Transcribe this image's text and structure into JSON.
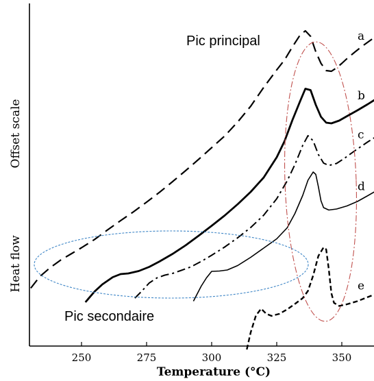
{
  "chart_data": {
    "type": "line",
    "title": "",
    "xlabel": "Temperature (°C)",
    "ylabel": "Heat flow",
    "ylabel_secondary": "Offset scale",
    "xlim": [
      230,
      365
    ],
    "ylim": [
      0,
      100
    ],
    "xticks": [
      250,
      275,
      300,
      325,
      350
    ],
    "grid": false,
    "annotations": {
      "main_peak": "Pic principal",
      "secondary_peak": "Pic secondaire"
    },
    "series": [
      {
        "name": "a",
        "dash": "long-dash",
        "points": [
          [
            230.5,
            16.9
          ],
          [
            234,
            20.3
          ],
          [
            238,
            22.9
          ],
          [
            242,
            25.1
          ],
          [
            246,
            26.9
          ],
          [
            250,
            28.7
          ],
          [
            255,
            31.1
          ],
          [
            260,
            33.9
          ],
          [
            265,
            36.6
          ],
          [
            270,
            39.2
          ],
          [
            275,
            42.0
          ],
          [
            280,
            44.9
          ],
          [
            285,
            48.0
          ],
          [
            290,
            51.2
          ],
          [
            295,
            54.5
          ],
          [
            300,
            57.9
          ],
          [
            305,
            61.3
          ],
          [
            310,
            65.4
          ],
          [
            315,
            70.0
          ],
          [
            320,
            75.5
          ],
          [
            325,
            80.6
          ],
          [
            328,
            83.5
          ],
          [
            331,
            87.3
          ],
          [
            334,
            90.8
          ],
          [
            336,
            92.0
          ],
          [
            338,
            90.4
          ],
          [
            340,
            85.9
          ],
          [
            342,
            82.5
          ],
          [
            344,
            80.4
          ],
          [
            346,
            80.2
          ],
          [
            348,
            81.2
          ],
          [
            350,
            82.5
          ],
          [
            352,
            83.9
          ],
          [
            355,
            85.8
          ],
          [
            358,
            87.6
          ],
          [
            362,
            89.8
          ],
          [
            365,
            91.2
          ]
        ]
      },
      {
        "name": "b",
        "dash": "solid-thick",
        "points": [
          [
            251.5,
            12.8
          ],
          [
            255,
            15.9
          ],
          [
            258,
            18.0
          ],
          [
            262,
            20.1
          ],
          [
            265,
            21.0
          ],
          [
            268,
            21.2
          ],
          [
            272,
            21.9
          ],
          [
            276,
            23.1
          ],
          [
            280,
            24.7
          ],
          [
            285,
            26.9
          ],
          [
            290,
            29.4
          ],
          [
            295,
            32.2
          ],
          [
            300,
            35.1
          ],
          [
            305,
            38.1
          ],
          [
            310,
            41.4
          ],
          [
            315,
            45.0
          ],
          [
            320,
            49.2
          ],
          [
            325,
            55.1
          ],
          [
            328,
            59.8
          ],
          [
            331,
            65.9
          ],
          [
            334,
            71.5
          ],
          [
            336,
            75.1
          ],
          [
            338,
            74.7
          ],
          [
            340,
            70.4
          ],
          [
            342,
            66.9
          ],
          [
            344,
            65.2
          ],
          [
            346,
            65.0
          ],
          [
            349,
            65.8
          ],
          [
            352,
            67.1
          ],
          [
            356,
            68.8
          ],
          [
            360,
            70.6
          ],
          [
            365,
            73.0
          ]
        ]
      },
      {
        "name": "c",
        "dash": "dash-dot",
        "points": [
          [
            270.5,
            14.0
          ],
          [
            273,
            15.9
          ],
          [
            276,
            18.4
          ],
          [
            279,
            19.9
          ],
          [
            282,
            20.7
          ],
          [
            285,
            21.2
          ],
          [
            288,
            22.0
          ],
          [
            292,
            23.1
          ],
          [
            296,
            24.7
          ],
          [
            300,
            26.5
          ],
          [
            305,
            28.9
          ],
          [
            310,
            31.6
          ],
          [
            315,
            34.6
          ],
          [
            320,
            38.2
          ],
          [
            325,
            43.0
          ],
          [
            329,
            48.2
          ],
          [
            332,
            53.0
          ],
          [
            335,
            58.6
          ],
          [
            337,
            61.4
          ],
          [
            339,
            59.9
          ],
          [
            341,
            55.9
          ],
          [
            343,
            53.4
          ],
          [
            345,
            52.7
          ],
          [
            348,
            53.3
          ],
          [
            351,
            54.8
          ],
          [
            355,
            57.0
          ],
          [
            360,
            59.6
          ],
          [
            365,
            62.0
          ]
        ]
      },
      {
        "name": "d",
        "dash": "solid-thin",
        "points": [
          [
            293,
            13.1
          ],
          [
            296,
            17.5
          ],
          [
            298,
            19.9
          ],
          [
            300,
            21.8
          ],
          [
            303,
            21.9
          ],
          [
            306,
            22.2
          ],
          [
            310,
            23.5
          ],
          [
            315,
            25.9
          ],
          [
            320,
            28.6
          ],
          [
            325,
            31.3
          ],
          [
            329,
            34.5
          ],
          [
            332,
            38.7
          ],
          [
            335,
            44.0
          ],
          [
            337,
            48.4
          ],
          [
            339,
            50.8
          ],
          [
            340,
            50.1
          ],
          [
            341,
            46.5
          ],
          [
            342,
            42.4
          ],
          [
            343,
            40.4
          ],
          [
            345,
            39.7
          ],
          [
            348,
            40.0
          ],
          [
            352,
            40.9
          ],
          [
            356,
            42.2
          ],
          [
            360,
            43.9
          ],
          [
            365,
            46.1
          ]
        ]
      },
      {
        "name": "e",
        "dash": "short-dash",
        "points": [
          [
            313.5,
            -1.0
          ],
          [
            315,
            4.0
          ],
          [
            317,
            8.9
          ],
          [
            319,
            10.9
          ],
          [
            321,
            9.4
          ],
          [
            323,
            8.8
          ],
          [
            326,
            9.4
          ],
          [
            329,
            10.7
          ],
          [
            332,
            12.3
          ],
          [
            335,
            14.0
          ],
          [
            337,
            16.1
          ],
          [
            339,
            20.6
          ],
          [
            341,
            26.3
          ],
          [
            343,
            28.8
          ],
          [
            344,
            28.2
          ],
          [
            345,
            22.4
          ],
          [
            346,
            15.4
          ],
          [
            347,
            12.6
          ],
          [
            349,
            11.7
          ],
          [
            352,
            12.2
          ],
          [
            356,
            13.1
          ],
          [
            360,
            14.3
          ],
          [
            365,
            15.8
          ]
        ]
      }
    ]
  }
}
